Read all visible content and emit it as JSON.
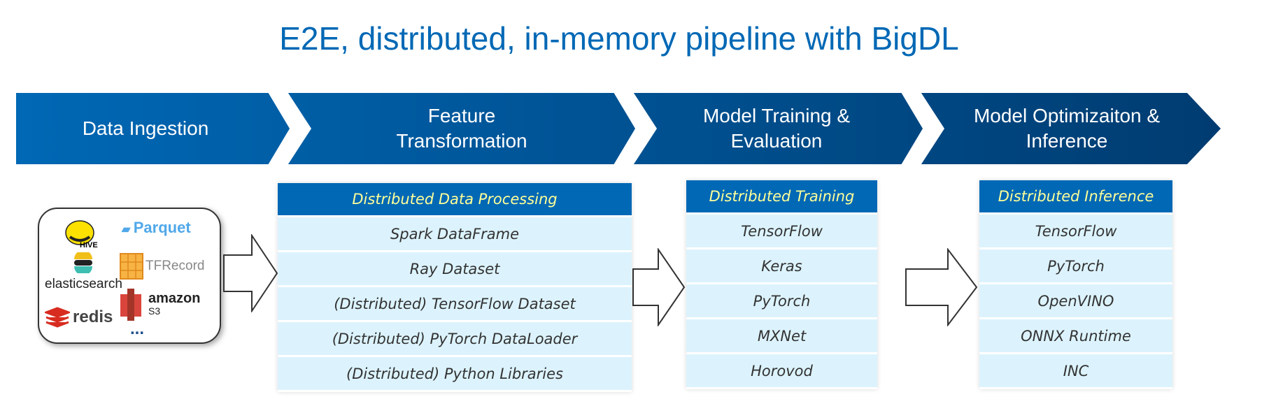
{
  "title": "E2E, distributed, in-memory pipeline with BigDL",
  "colors": {
    "banner_start": "#0068b5",
    "banner_end": "#003c71",
    "table_header": "#0068b5",
    "header_text": "#ffff99",
    "row_bg": "#dcf3fd"
  },
  "stages": [
    {
      "line1": "Data Ingestion",
      "line2": ""
    },
    {
      "line1": "Feature",
      "line2": "Transformation"
    },
    {
      "line1": "Model Training &",
      "line2": "Evaluation"
    },
    {
      "line1": "Model Optimizaiton &",
      "line2": "Inference"
    }
  ],
  "sources": {
    "hive": "HIVE",
    "parquet": "Parquet",
    "tfrecord": "TFRecord",
    "elasticsearch": "elasticsearch",
    "redis": "redis",
    "amazon": "amazon",
    "s3": "S3",
    "more": "..."
  },
  "tables": [
    {
      "header": "Distributed Data Processing",
      "rows": [
        "Spark DataFrame",
        "Ray Dataset",
        "(Distributed) TensorFlow Dataset",
        "(Distributed) PyTorch DataLoader",
        "(Distributed) Python Libraries"
      ]
    },
    {
      "header": "Distributed Training",
      "rows": [
        "TensorFlow",
        "Keras",
        "PyTorch",
        "MXNet",
        "Horovod"
      ]
    },
    {
      "header": "Distributed Inference",
      "rows": [
        "TensorFlow",
        "PyTorch",
        "OpenVINO",
        "ONNX Runtime",
        "INC"
      ]
    }
  ]
}
